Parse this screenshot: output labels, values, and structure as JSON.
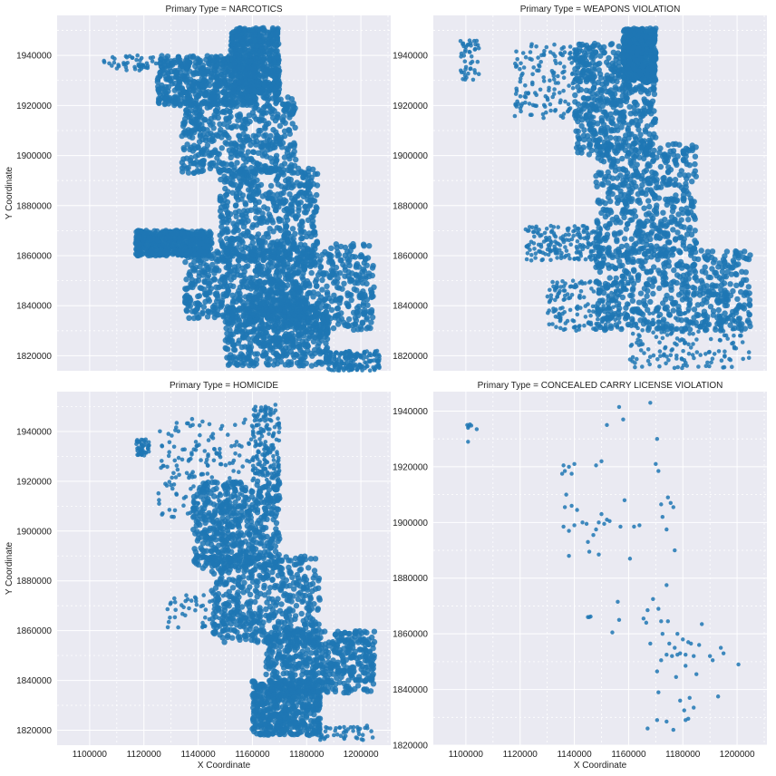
{
  "chart_data": {
    "type": "scatter",
    "xlabel": "X Coordinate",
    "ylabel": "Y Coordinate",
    "color": "#1f77b4",
    "background": "#eaeaf2",
    "grid": true,
    "panels": [
      {
        "title": "Primary Type = NARCOTICS",
        "xlim": [
          1088000,
          1211000
        ],
        "ylim": [
          1814000,
          1956000
        ],
        "show_xticks": false,
        "show_yticks": true,
        "blobs": [
          {
            "x": [
              1105000,
              1125000
            ],
            "y": [
              1934000,
              1940000
            ],
            "density": "sparse"
          },
          {
            "x": [
              1125000,
              1162000
            ],
            "y": [
              1920000,
              1940000
            ],
            "density": "dense"
          },
          {
            "x": [
              1134000,
              1176000
            ],
            "y": [
              1893000,
              1925000
            ],
            "density": "dense"
          },
          {
            "x": [
              1152000,
              1170000
            ],
            "y": [
              1925000,
              1951000
            ],
            "density": "dense"
          },
          {
            "x": [
              1148000,
              1184000
            ],
            "y": [
              1858000,
              1895000
            ],
            "density": "dense"
          },
          {
            "x": [
              1117000,
              1145000
            ],
            "y": [
              1860000,
              1870000
            ],
            "density": "dense"
          },
          {
            "x": [
              1135000,
              1180000
            ],
            "y": [
              1835000,
              1862000
            ],
            "density": "dense"
          },
          {
            "x": [
              1160000,
              1205000
            ],
            "y": [
              1830000,
              1865000
            ],
            "density": "dense"
          },
          {
            "x": [
              1150000,
              1188000
            ],
            "y": [
              1816000,
              1840000
            ],
            "density": "dense"
          },
          {
            "x": [
              1188000,
              1207000
            ],
            "y": [
              1814000,
              1822000
            ],
            "density": "medium"
          }
        ]
      },
      {
        "title": "Primary Type = WEAPONS VIOLATION",
        "xlim": [
          1088000,
          1211000
        ],
        "ylim": [
          1814000,
          1956000
        ],
        "show_xticks": false,
        "show_yticks": true,
        "blobs": [
          {
            "x": [
              1098000,
              1105000
            ],
            "y": [
              1930000,
              1946000
            ],
            "density": "sparse"
          },
          {
            "x": [
              1118000,
              1148000
            ],
            "y": [
              1915000,
              1945000
            ],
            "density": "medium"
          },
          {
            "x": [
              1140000,
              1170000
            ],
            "y": [
              1900000,
              1945000
            ],
            "density": "dense"
          },
          {
            "x": [
              1158000,
              1170000
            ],
            "y": [
              1930000,
              1951000
            ],
            "density": "dense"
          },
          {
            "x": [
              1148000,
              1185000
            ],
            "y": [
              1860000,
              1905000
            ],
            "density": "dense"
          },
          {
            "x": [
              1122000,
              1150000
            ],
            "y": [
              1858000,
              1872000
            ],
            "density": "medium"
          },
          {
            "x": [
              1148000,
              1205000
            ],
            "y": [
              1830000,
              1862000
            ],
            "density": "dense"
          },
          {
            "x": [
              1130000,
              1160000
            ],
            "y": [
              1830000,
              1850000
            ],
            "density": "medium"
          },
          {
            "x": [
              1160000,
              1205000
            ],
            "y": [
              1815000,
              1838000
            ],
            "density": "medium"
          }
        ]
      },
      {
        "title": "Primary Type = HOMICIDE",
        "xlim": [
          1088000,
          1211000
        ],
        "ylim": [
          1814000,
          1956000
        ],
        "show_xticks": true,
        "show_yticks": true,
        "blobs": [
          {
            "x": [
              1117000,
              1122000
            ],
            "y": [
              1930000,
              1937000
            ],
            "density": "sparse"
          },
          {
            "x": [
              1125000,
              1160000
            ],
            "y": [
              1905000,
              1945000
            ],
            "density": "medium"
          },
          {
            "x": [
              1138000,
              1170000
            ],
            "y": [
              1885000,
              1920000
            ],
            "density": "dense"
          },
          {
            "x": [
              1160000,
              1170000
            ],
            "y": [
              1920000,
              1951000
            ],
            "density": "medium"
          },
          {
            "x": [
              1128000,
              1150000
            ],
            "y": [
              1860000,
              1875000
            ],
            "density": "sparse"
          },
          {
            "x": [
              1145000,
              1185000
            ],
            "y": [
              1855000,
              1890000
            ],
            "density": "dense"
          },
          {
            "x": [
              1165000,
              1205000
            ],
            "y": [
              1835000,
              1860000
            ],
            "density": "dense"
          },
          {
            "x": [
              1160000,
              1185000
            ],
            "y": [
              1818000,
              1840000
            ],
            "density": "dense"
          },
          {
            "x": [
              1185000,
              1205000
            ],
            "y": [
              1816000,
              1822000
            ],
            "density": "sparse"
          }
        ]
      },
      {
        "title": "Primary Type = CONCEALED CARRY LICENSE VIOLATION",
        "xlim": [
          1088000,
          1211000
        ],
        "ylim": [
          1820000,
          1947000
        ],
        "show_xticks": true,
        "show_yticks": true,
        "points": [
          [
            1100500,
            1935000
          ],
          [
            1101000,
            1934500
          ],
          [
            1101500,
            1935200
          ],
          [
            1100800,
            1934000
          ],
          [
            1102000,
            1934800
          ],
          [
            1104000,
            1933500
          ],
          [
            1100800,
            1929000
          ],
          [
            1135500,
            1917500
          ],
          [
            1136000,
            1920500
          ],
          [
            1136500,
            1918500
          ],
          [
            1138000,
            1920000
          ],
          [
            1140000,
            1921000
          ],
          [
            1139000,
            1917500
          ],
          [
            1148000,
            1920500
          ],
          [
            1150000,
            1922000
          ],
          [
            1137000,
            1910000
          ],
          [
            1136500,
            1905500
          ],
          [
            1136000,
            1898500
          ],
          [
            1138000,
            1897000
          ],
          [
            1139000,
            1906000
          ],
          [
            1141000,
            1904500
          ],
          [
            1140000,
            1899000
          ],
          [
            1143000,
            1900000
          ],
          [
            1144500,
            1899500
          ],
          [
            1145000,
            1893000
          ],
          [
            1147000,
            1895500
          ],
          [
            1148000,
            1897500
          ],
          [
            1149000,
            1900000
          ],
          [
            1150000,
            1903000
          ],
          [
            1151000,
            1899500
          ],
          [
            1152000,
            1901000
          ],
          [
            1153000,
            1900500
          ],
          [
            1138000,
            1888000
          ],
          [
            1145500,
            1889500
          ],
          [
            1149000,
            1888500
          ],
          [
            1152000,
            1935000
          ],
          [
            1156500,
            1941500
          ],
          [
            1158000,
            1937000
          ],
          [
            1158500,
            1908000
          ],
          [
            1157000,
            1898500
          ],
          [
            1162000,
            1898500
          ],
          [
            1164000,
            1899000
          ],
          [
            1160500,
            1887000
          ],
          [
            1168000,
            1943000
          ],
          [
            1170000,
            1921000
          ],
          [
            1171000,
            1918500
          ],
          [
            1170500,
            1930000
          ],
          [
            1172000,
            1906500
          ],
          [
            1172500,
            1902000
          ],
          [
            1174500,
            1909000
          ],
          [
            1175500,
            1907000
          ],
          [
            1176500,
            1905500
          ],
          [
            1174000,
            1897500
          ],
          [
            1177000,
            1890000
          ],
          [
            1145000,
            1866000
          ],
          [
            1145500,
            1866000
          ],
          [
            1146000,
            1866200
          ],
          [
            1154000,
            1860500
          ],
          [
            1156000,
            1871500
          ],
          [
            1156500,
            1865000
          ],
          [
            1165500,
            1865500
          ],
          [
            1166500,
            1864000
          ],
          [
            1167000,
            1868500
          ],
          [
            1168000,
            1856500
          ],
          [
            1169000,
            1872500
          ],
          [
            1171000,
            1869000
          ],
          [
            1172000,
            1864500
          ],
          [
            1172500,
            1860000
          ],
          [
            1174000,
            1877500
          ],
          [
            1174500,
            1864500
          ],
          [
            1175000,
            1856500
          ],
          [
            1176000,
            1852000
          ],
          [
            1177000,
            1855000
          ],
          [
            1178000,
            1860000
          ],
          [
            1178000,
            1852500
          ],
          [
            1179000,
            1853000
          ],
          [
            1180000,
            1858000
          ],
          [
            1181000,
            1852500
          ],
          [
            1182000,
            1857000
          ],
          [
            1183000,
            1856500
          ],
          [
            1184000,
            1852000
          ],
          [
            1186000,
            1856000
          ],
          [
            1187000,
            1863500
          ],
          [
            1191000,
            1850500
          ],
          [
            1194000,
            1855000
          ],
          [
            1195000,
            1853000
          ],
          [
            1200500,
            1849000
          ],
          [
            1170500,
            1846500
          ],
          [
            1172000,
            1850500
          ],
          [
            1174000,
            1852500
          ],
          [
            1177500,
            1844500
          ],
          [
            1181000,
            1848500
          ],
          [
            1185000,
            1845500
          ],
          [
            1190000,
            1852000
          ],
          [
            1171000,
            1839000
          ],
          [
            1179000,
            1836000
          ],
          [
            1180500,
            1832500
          ],
          [
            1182000,
            1829500
          ],
          [
            1184000,
            1833500
          ],
          [
            1182500,
            1837000
          ],
          [
            1193000,
            1837500
          ],
          [
            1167000,
            1826000
          ],
          [
            1170500,
            1829000
          ],
          [
            1174000,
            1828500
          ],
          [
            1176500,
            1825500
          ],
          [
            1181000,
            1829000
          ]
        ]
      }
    ],
    "xticks": [
      1100000,
      1120000,
      1140000,
      1160000,
      1180000,
      1200000
    ],
    "yticks_panels_1_2_3": [
      1820000,
      1840000,
      1860000,
      1880000,
      1900000,
      1920000,
      1940000
    ],
    "yticks_panel_4": [
      1820000,
      1840000,
      1860000,
      1880000,
      1900000,
      1920000,
      1940000
    ]
  }
}
